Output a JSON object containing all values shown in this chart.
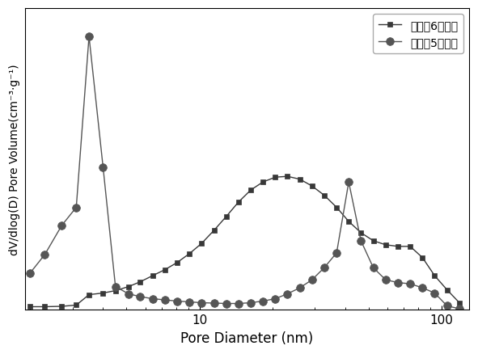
{
  "series1_label": "实施例6催化剂",
  "series2_label": "对比例5催化剂",
  "series1_color": "#383838",
  "series2_color": "#555555",
  "series1_marker": "s",
  "series2_marker": "o",
  "xlabel": "Pore Diameter (nm)",
  "ylabel": "dV/dlog(D) Pore Volume(cm⁻³·g⁻¹)",
  "series1_x": [
    2.0,
    2.3,
    2.7,
    3.1,
    3.5,
    4.0,
    4.5,
    5.1,
    5.7,
    6.4,
    7.2,
    8.1,
    9.1,
    10.2,
    11.5,
    12.9,
    14.5,
    16.3,
    18.3,
    20.6,
    23.1,
    26.0,
    29.2,
    32.8,
    36.9,
    41.4,
    46.5,
    52.3,
    58.8,
    66.1,
    74.3,
    83.5,
    93.8,
    105.5,
    118.6
  ],
  "series1_y": [
    0.008,
    0.008,
    0.009,
    0.012,
    0.038,
    0.042,
    0.048,
    0.058,
    0.07,
    0.085,
    0.1,
    0.118,
    0.14,
    0.165,
    0.198,
    0.232,
    0.268,
    0.298,
    0.318,
    0.33,
    0.332,
    0.325,
    0.308,
    0.285,
    0.255,
    0.22,
    0.192,
    0.172,
    0.162,
    0.158,
    0.158,
    0.13,
    0.085,
    0.05,
    0.018
  ],
  "series2_x": [
    2.0,
    2.3,
    2.7,
    3.1,
    3.5,
    4.0,
    4.5,
    5.1,
    5.7,
    6.4,
    7.2,
    8.1,
    9.1,
    10.2,
    11.5,
    12.9,
    14.5,
    16.3,
    18.3,
    20.6,
    23.1,
    26.0,
    29.2,
    32.8,
    36.9,
    41.4,
    46.5,
    52.3,
    58.8,
    66.1,
    74.3,
    83.5,
    93.8,
    105.5,
    118.6
  ],
  "series2_y": [
    0.092,
    0.138,
    0.21,
    0.255,
    0.68,
    0.355,
    0.058,
    0.04,
    0.033,
    0.028,
    0.025,
    0.022,
    0.02,
    0.018,
    0.017,
    0.016,
    0.016,
    0.018,
    0.022,
    0.028,
    0.04,
    0.055,
    0.075,
    0.105,
    0.142,
    0.318,
    0.172,
    0.105,
    0.075,
    0.068,
    0.065,
    0.055,
    0.042,
    0.01,
    0.003
  ],
  "xlim": [
    1.9,
    130
  ],
  "ylim_min": 0.0,
  "ylim_max": 0.75,
  "legend_loc": "upper right",
  "marker_size": 5,
  "marker_size2": 7,
  "linewidth": 1.0,
  "figsize": [
    5.91,
    4.39
  ],
  "dpi": 100,
  "xticks": [
    10,
    100
  ],
  "xtick_labels": [
    "10",
    "100"
  ]
}
